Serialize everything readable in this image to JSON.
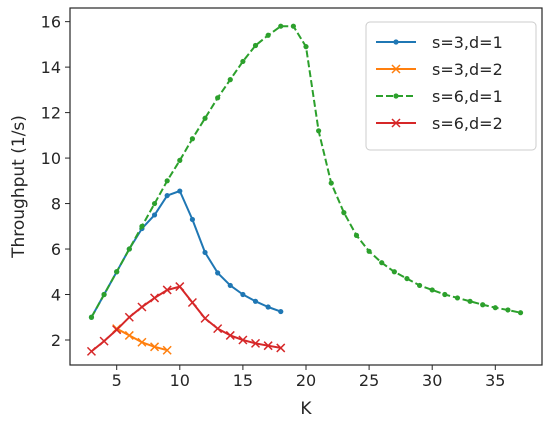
{
  "chart_data": {
    "type": "line",
    "xlabel": "K",
    "ylabel": "Throughput (1/s)",
    "xlim": [
      1.3,
      38.7
    ],
    "ylim": [
      0.9,
      16.6
    ],
    "xticks": [
      5,
      10,
      15,
      20,
      25,
      30,
      35
    ],
    "yticks": [
      2,
      4,
      6,
      8,
      10,
      12,
      14,
      16
    ],
    "grid": false,
    "legend_position": "top-right",
    "series": [
      {
        "name": "s=3,d=1",
        "color": "#1f77b4",
        "line_style": "solid",
        "marker": "dot",
        "x": [
          3,
          4,
          5,
          6,
          7,
          8,
          9,
          10,
          11,
          12,
          13,
          14,
          15,
          16,
          17,
          18
        ],
        "y": [
          3.0,
          4.0,
          5.0,
          6.0,
          6.9,
          7.5,
          8.35,
          8.55,
          7.3,
          5.85,
          4.95,
          4.4,
          4.0,
          3.7,
          3.45,
          3.25
        ]
      },
      {
        "name": "s=3,d=2",
        "color": "#ff7f0e",
        "line_style": "solid",
        "marker": "x",
        "x": [
          5,
          6,
          7,
          8,
          9
        ],
        "y": [
          2.5,
          2.2,
          1.9,
          1.7,
          1.55
        ]
      },
      {
        "name": "s=6,d=1",
        "color": "#2ca02c",
        "line_style": "dashed",
        "marker": "dot",
        "x": [
          3,
          4,
          5,
          6,
          7,
          8,
          9,
          10,
          11,
          12,
          13,
          14,
          15,
          16,
          17,
          18,
          19,
          20,
          21,
          22,
          23,
          24,
          25,
          26,
          27,
          28,
          29,
          30,
          31,
          32,
          33,
          34,
          35,
          36,
          37
        ],
        "y": [
          3.0,
          4.0,
          5.0,
          6.0,
          7.0,
          8.0,
          9.0,
          9.9,
          10.85,
          11.75,
          12.65,
          13.45,
          14.25,
          14.95,
          15.4,
          15.8,
          15.8,
          14.9,
          11.2,
          8.9,
          7.6,
          6.6,
          5.9,
          5.4,
          5.0,
          4.7,
          4.4,
          4.2,
          4.0,
          3.85,
          3.7,
          3.55,
          3.42,
          3.32,
          3.2
        ]
      },
      {
        "name": "s=6,d=2",
        "color": "#d62728",
        "line_style": "solid",
        "marker": "x",
        "x": [
          3,
          4,
          5,
          6,
          7,
          8,
          9,
          10,
          11,
          12,
          13,
          14,
          15,
          16,
          17,
          18
        ],
        "y": [
          1.5,
          1.95,
          2.45,
          3.0,
          3.45,
          3.85,
          4.2,
          4.35,
          3.65,
          2.95,
          2.5,
          2.2,
          2.0,
          1.85,
          1.75,
          1.65
        ]
      }
    ]
  }
}
